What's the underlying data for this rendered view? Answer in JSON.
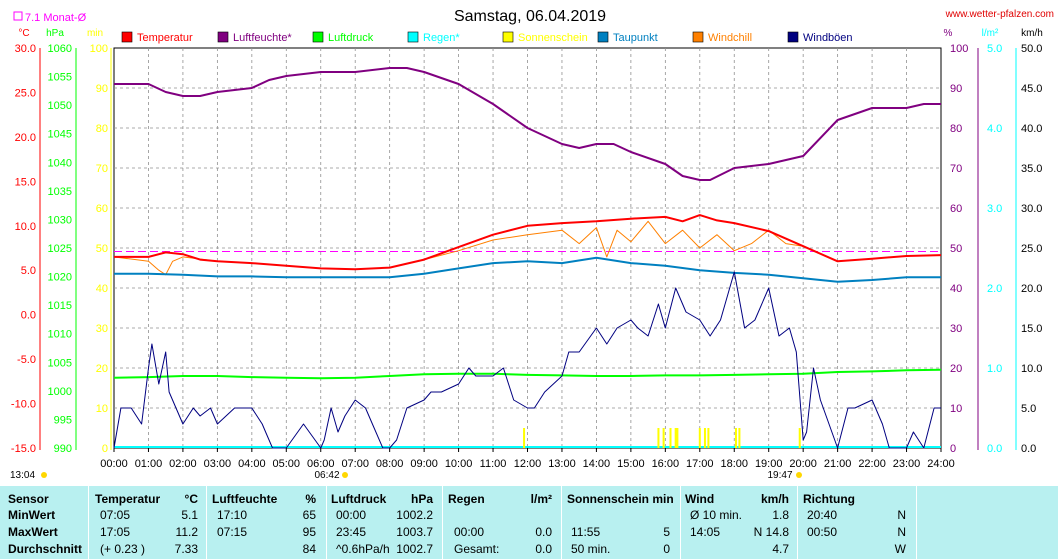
{
  "page": {
    "title": "Samstag, 06.04.2019",
    "site": "www.wetter-pfalzen.com",
    "month_avg_label": "7.1 Monat-Ø",
    "sunrise": "06:42",
    "sunset": "19:47",
    "start_time": "13:04"
  },
  "units": {
    "left": [
      "°C",
      "hPa",
      "min"
    ],
    "right": [
      "%",
      "l/m²",
      "km/h"
    ]
  },
  "legend": [
    {
      "label": "Temperatur",
      "color": "#ff0000"
    },
    {
      "label": "Luftfeuchte*",
      "color": "#800080"
    },
    {
      "label": "Luftdruck",
      "color": "#00ff00"
    },
    {
      "label": "Regen*",
      "color": "#00ffff"
    },
    {
      "label": "Sonnenschein",
      "color": "#ffff00"
    },
    {
      "label": "Taupunkt",
      "color": "#0080c0"
    },
    {
      "label": "Windchill",
      "color": "#ff8000"
    },
    {
      "label": "Windböen",
      "color": "#000080"
    }
  ],
  "colors": {
    "temp": "#ff0000",
    "hum": "#800080",
    "press": "#00ff00",
    "rain": "#00ffff",
    "sun": "#ffff00",
    "dew": "#0080c0",
    "chill": "#ff8000",
    "gust": "#000080",
    "avg": "#ff00ff",
    "stats_bg": "#b8f0f0"
  },
  "chart_data": {
    "type": "line",
    "x_ticks": [
      "00:00",
      "01:00",
      "02:00",
      "03:00",
      "04:00",
      "05:00",
      "06:00",
      "07:00",
      "08:00",
      "09:00",
      "10:00",
      "11:00",
      "12:00",
      "13:00",
      "14:00",
      "15:00",
      "16:00",
      "17:00",
      "18:00",
      "19:00",
      "20:00",
      "21:00",
      "22:00",
      "23:00",
      "24:00"
    ],
    "axes": {
      "temp_c": {
        "range": [
          -15,
          30
        ],
        "ticks": [
          "30.0",
          "25.0",
          "20.0",
          "15.0",
          "10.0",
          "5.0",
          "0.0",
          "-5.0",
          "-10.0",
          "-15.0"
        ]
      },
      "pressure_hpa": {
        "range": [
          990,
          1060
        ],
        "ticks": [
          "1060",
          "1055",
          "1050",
          "1045",
          "1040",
          "1035",
          "1030",
          "1025",
          "1020",
          "1015",
          "1010",
          "1005",
          "1000",
          "995",
          "990"
        ]
      },
      "sun_min": {
        "range": [
          0,
          100
        ],
        "ticks": [
          "100",
          "90",
          "80",
          "70",
          "60",
          "50",
          "40",
          "30",
          "20",
          "10",
          "0"
        ]
      },
      "humidity_pct": {
        "range": [
          0,
          100
        ],
        "ticks": [
          "100",
          "90",
          "80",
          "70",
          "60",
          "50",
          "40",
          "30",
          "20",
          "10",
          "0"
        ]
      },
      "rain_lm2": {
        "range": [
          0,
          5
        ],
        "ticks": [
          "5.0",
          "4.0",
          "3.0",
          "2.0",
          "1.0",
          "0.0"
        ]
      },
      "wind_kmh": {
        "range": [
          0,
          50
        ],
        "ticks": [
          "50.0",
          "45.0",
          "40.0",
          "35.0",
          "30.0",
          "25.0",
          "20.0",
          "15.0",
          "10.0",
          "5.0",
          "0.0"
        ]
      }
    },
    "month_avg_temp": 7.1,
    "series": [
      {
        "name": "Temperatur",
        "axis": "temp_c",
        "x": [
          0,
          1,
          1.5,
          2,
          2.5,
          3,
          4,
          5,
          6,
          7,
          8,
          9,
          10,
          11,
          12,
          13,
          14,
          15,
          16,
          16.5,
          17,
          17.5,
          18,
          19,
          20,
          21,
          22,
          23,
          24
        ],
        "y": [
          6.5,
          6.5,
          7.0,
          6.8,
          6.2,
          6.0,
          5.8,
          5.5,
          5.2,
          5.1,
          5.3,
          6.2,
          7.6,
          9.0,
          10.0,
          10.3,
          10.5,
          10.8,
          11.0,
          10.5,
          11.2,
          10.6,
          10.3,
          9.4,
          7.7,
          6.0,
          6.3,
          6.6,
          6.7
        ]
      },
      {
        "name": "Luftfeuchte*",
        "axis": "humidity_pct",
        "x": [
          0,
          1,
          1.5,
          2,
          2.5,
          3,
          4,
          4.5,
          5,
          6,
          7,
          8,
          8.5,
          9,
          10,
          11,
          12,
          13,
          13.5,
          14,
          14.5,
          15,
          16,
          16.5,
          17,
          17.3,
          18,
          19,
          20,
          21,
          22,
          23,
          23.5,
          24
        ],
        "y": [
          91,
          91,
          89,
          88,
          88,
          89,
          90,
          92,
          93,
          94,
          94,
          95,
          95,
          94,
          91,
          86,
          80,
          76,
          75,
          76,
          76,
          74,
          71,
          68,
          67,
          67,
          70,
          71,
          73,
          82,
          85,
          85,
          86,
          86
        ]
      },
      {
        "name": "Luftdruck",
        "axis": "pressure_hpa",
        "x": [
          0,
          1,
          2,
          3,
          4,
          5,
          6,
          7,
          8,
          9,
          10,
          11,
          12,
          13,
          14,
          15,
          16,
          17,
          18,
          19,
          20,
          21,
          22,
          23,
          24
        ],
        "y": [
          1002.3,
          1002.4,
          1002.6,
          1002.6,
          1002.4,
          1002.3,
          1002.2,
          1002.3,
          1002.6,
          1002.9,
          1003.0,
          1003.0,
          1002.8,
          1002.7,
          1002.6,
          1002.6,
          1002.7,
          1002.7,
          1002.8,
          1002.9,
          1003.0,
          1003.3,
          1003.4,
          1003.6,
          1003.7
        ]
      },
      {
        "name": "Taupunkt",
        "axis": "temp_c",
        "x": [
          0,
          1,
          2,
          3,
          4,
          5,
          6,
          7,
          8,
          9,
          10,
          11,
          12,
          13,
          14,
          15,
          16,
          17,
          18,
          19,
          20,
          21,
          22,
          23,
          24
        ],
        "y": [
          4.6,
          4.6,
          4.5,
          4.3,
          4.3,
          4.2,
          4.2,
          4.2,
          4.2,
          4.6,
          5.2,
          5.8,
          6.0,
          5.8,
          6.4,
          5.8,
          5.5,
          5.0,
          4.7,
          4.5,
          4.1,
          3.7,
          3.9,
          4.2,
          4.2
        ]
      },
      {
        "name": "Windchill",
        "axis": "temp_c",
        "x": [
          0,
          1,
          1.3,
          1.5,
          1.7,
          2,
          3,
          4,
          5,
          6,
          7,
          8,
          9,
          10,
          11,
          12,
          13,
          13.5,
          14,
          14.3,
          14.6,
          15,
          15.5,
          16,
          16.5,
          17,
          17.5,
          18,
          18.5,
          19,
          19.5,
          20
        ],
        "y": [
          6.5,
          6.0,
          5.0,
          4.5,
          6.0,
          6.5,
          6.0,
          5.8,
          5.5,
          5.2,
          5.1,
          5.3,
          6.2,
          7.2,
          8.4,
          9.0,
          9.5,
          8.0,
          9.8,
          6.5,
          9.5,
          8.2,
          10.5,
          8.0,
          9.5,
          7.5,
          9.0,
          7.2,
          8.0,
          9.5,
          8.0,
          7.7
        ]
      },
      {
        "name": "Windböen",
        "axis": "wind_kmh",
        "x": [
          0,
          0.2,
          0.5,
          0.8,
          1.0,
          1.1,
          1.3,
          1.5,
          1.6,
          1.8,
          2.0,
          2.3,
          2.5,
          2.8,
          3.0,
          3.5,
          4.0,
          4.3,
          4.4,
          4.6,
          5.0,
          5.5,
          6.0,
          6.1,
          6.3,
          6.5,
          6.7,
          7.0,
          7.3,
          7.5,
          7.8,
          8.0,
          8.2,
          8.5,
          9.0,
          9.2,
          9.5,
          10.0,
          10.3,
          10.5,
          11.0,
          11.3,
          11.6,
          12.0,
          12.2,
          12.5,
          13.0,
          13.2,
          13.5,
          14.0,
          14.3,
          14.6,
          15.0,
          15.2,
          15.5,
          15.8,
          16.0,
          16.3,
          16.6,
          17.0,
          17.3,
          17.6,
          18.0,
          18.3,
          18.6,
          19.0,
          19.3,
          19.6,
          19.8,
          20.0,
          20.1,
          20.3,
          20.5,
          21.0,
          21.3,
          21.5,
          22.0,
          22.3,
          22.5,
          23.0,
          23.2,
          23.5,
          23.8,
          24.0
        ],
        "y": [
          0,
          5,
          5,
          3,
          10,
          13,
          8,
          12,
          7,
          5,
          3,
          5,
          4,
          5,
          3,
          5,
          5,
          3,
          2,
          0,
          0,
          3,
          0,
          1,
          5,
          2,
          4,
          6,
          5,
          3,
          0,
          0,
          1,
          5,
          6,
          7,
          7,
          8,
          10,
          9,
          9,
          10,
          6,
          5,
          5,
          7,
          9,
          12,
          12,
          15,
          13,
          15,
          16,
          15,
          14,
          18,
          15,
          20,
          17,
          16,
          14,
          16,
          22,
          15,
          16,
          20,
          14,
          15,
          12,
          1,
          2,
          10,
          6,
          0,
          5,
          5,
          6,
          3,
          0,
          0,
          2,
          0,
          5,
          5
        ]
      }
    ],
    "sunshine_bars_hours": [
      11.9,
      15.8,
      15.95,
      16.15,
      16.3,
      16.35,
      17.0,
      17.15,
      17.25,
      18.05,
      18.15,
      19.9
    ],
    "rain_total": 0.0
  },
  "stats": {
    "header": {
      "sensor": "Sensor",
      "temp": "Temperatur",
      "temp_u": "°C",
      "hum": "Luftfeuchte",
      "hum_u": "%",
      "press": "Luftdruck",
      "press_u": "hPa",
      "rain": "Regen",
      "rain_u": "l/m²",
      "sun": "Sonnenschein min",
      "wind": "Wind",
      "wind_u": "km/h",
      "dir": "Richtung"
    },
    "rows": [
      {
        "label": "MinWert",
        "temp_t": "07:05",
        "temp_v": "5.1",
        "hum_t": "17:10",
        "hum_v": "65",
        "press_t": "00:00",
        "press_v": "1002.2",
        "rain_t": "",
        "rain_v": "",
        "sun_t": "",
        "sun_v": "",
        "wind_t": "Ø 10 min.",
        "wind_v": "1.8",
        "dir_t": "20:40",
        "dir_v": "N"
      },
      {
        "label": "MaxWert",
        "temp_t": "17:05",
        "temp_v": "11.2",
        "hum_t": "07:15",
        "hum_v": "95",
        "press_t": "23:45",
        "press_v": "1003.7",
        "rain_t": "00:00",
        "rain_v": "0.0",
        "sun_t": "11:55",
        "sun_v": "5",
        "wind_t": "14:05",
        "wind_v": "N 14.8",
        "dir_t": "00:50",
        "dir_v": "N"
      },
      {
        "label": "Durchschnitt",
        "temp_t": "(+ 0.23 )",
        "temp_v": "7.33",
        "hum_t": "",
        "hum_v": "84",
        "press_t": "^0.6hPa/h",
        "press_v": "1002.7",
        "rain_t": "Gesamt:",
        "rain_v": "0.0",
        "sun_t": "50 min.",
        "sun_v": "0",
        "wind_t": "",
        "wind_v": "4.7",
        "dir_t": "",
        "dir_v": "W"
      }
    ]
  }
}
